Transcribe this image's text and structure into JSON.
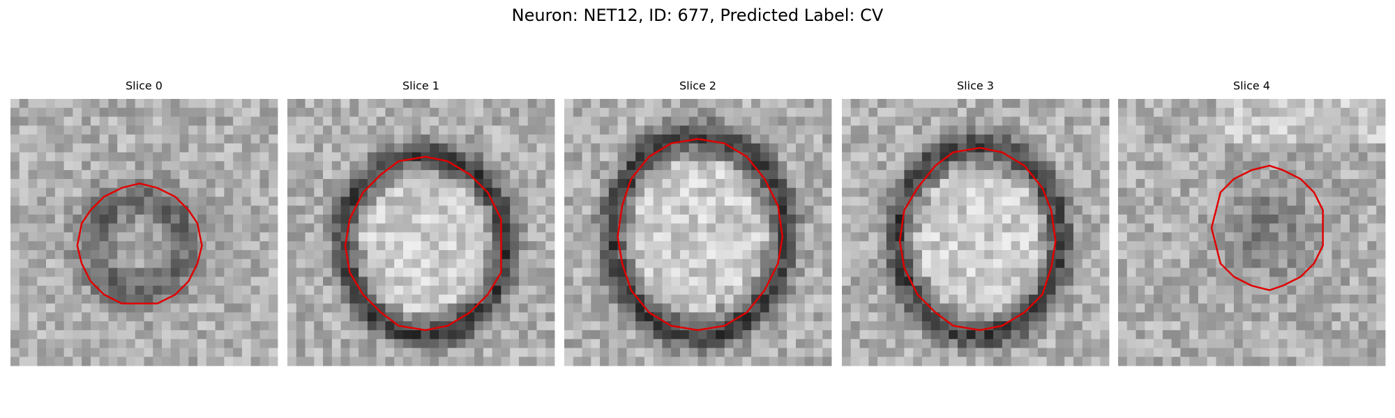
{
  "title": "Neuron: NET12, ID: 677, Predicted Label: CV",
  "panels": [
    {
      "title": "Slice 0"
    },
    {
      "title": "Slice 1"
    },
    {
      "title": "Slice 2"
    },
    {
      "title": "Slice 3"
    },
    {
      "title": "Slice 4"
    }
  ]
}
